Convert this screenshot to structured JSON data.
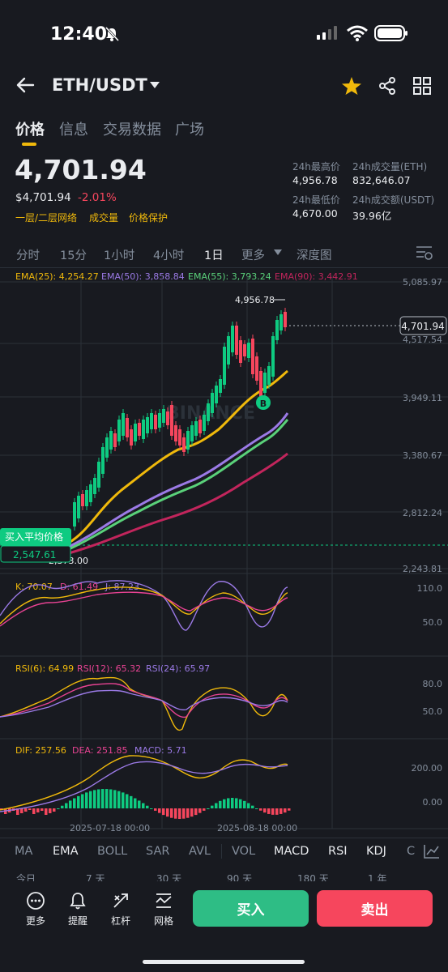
{
  "status_bar": {
    "time": "12:40"
  },
  "header": {
    "pair": "ETH/USDT"
  },
  "tabs": [
    "价格",
    "信息",
    "交易数据",
    "广场"
  ],
  "price": {
    "last": "4,701.94",
    "usd": "$4,701.94",
    "change": "-2.01%",
    "links": [
      "一层/二层网络",
      "成交量",
      "价格保护"
    ]
  },
  "stats": {
    "high_label": "24h最高价",
    "high": "4,956.78",
    "vol_eth_label": "24h成交量(ETH)",
    "vol_eth": "832,646.07",
    "low_label": "24h最低价",
    "low": "4,670.00",
    "vol_usdt_label": "24h成交额(USDT)",
    "vol_usdt": "39.96亿"
  },
  "timeframes": [
    "分时",
    "15分",
    "1小时",
    "4小时",
    "1日",
    "更多",
    "深度图"
  ],
  "ema_legend": {
    "ema25": "EMA(25): 4,254.27",
    "ema50": "EMA(50): 3,858.84",
    "ema55": "EMA(55): 3,793.24",
    "ema90": "EMA(90): 3,442.91"
  },
  "chart": {
    "y_labels": [
      "5,085.97",
      "4,517.54",
      "3,949.11",
      "3,380.67",
      "2,812.24",
      "2,243.81"
    ],
    "current_price": "4,701.94",
    "high_marker": "4,956.78",
    "low_marker": "2,373.00",
    "avg_buy_label": "买入平均价格",
    "avg_buy_value": "2,547.61",
    "b_marker": "B",
    "watermark": "BINANCE"
  },
  "kdj": {
    "k": "K: 70.07",
    "d": "D: 61.49",
    "j": "J: 87.23",
    "y_labels": [
      "110.0",
      "50.0"
    ]
  },
  "rsi": {
    "rsi6": "RSI(6): 64.99",
    "rsi12": "RSI(12): 65.32",
    "rsi24": "RSI(24): 65.97",
    "y_labels": [
      "80.0",
      "50.0"
    ]
  },
  "macd": {
    "dif": "DIF: 257.56",
    "dea": "DEA: 251.85",
    "macd": "MACD: 5.71",
    "y_labels": [
      "200.00",
      "0.00"
    ]
  },
  "x_dates": [
    "2025-07-18 00:00",
    "2025-08-18 00:00"
  ],
  "indicator_tabs": [
    "MA",
    "EMA",
    "BOLL",
    "SAR",
    "AVL",
    "VOL",
    "MACD",
    "RSI",
    "KDJ",
    "C"
  ],
  "ranges": [
    "今日",
    "7 天",
    "30 天",
    "90 天",
    "180 天",
    "1 年"
  ],
  "bottom_nav": [
    "更多",
    "提醒",
    "杠杆",
    "网格"
  ],
  "actions": {
    "buy": "买入",
    "sell": "卖出"
  },
  "colors": {
    "bg": "#181a20",
    "green": "#0ecb81",
    "red": "#f6465d",
    "yellow": "#f0b90b",
    "ema50": "#9b7ae6",
    "ema55": "#5ad17a",
    "ema90": "#c2255c"
  }
}
